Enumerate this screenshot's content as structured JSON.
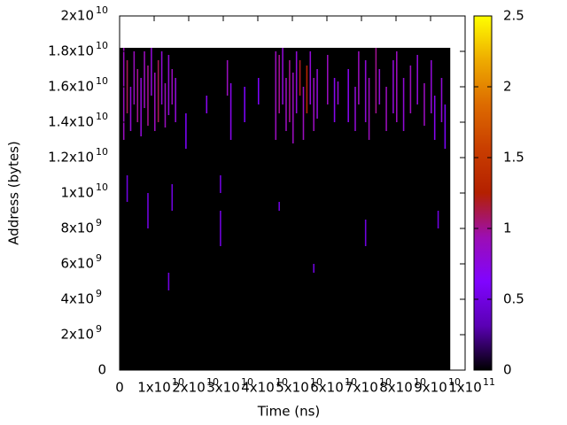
{
  "chart_data": {
    "type": "heatmap",
    "xlabel": "Time (ns)",
    "ylabel": "Address (bytes)",
    "xlim": [
      0,
      100000000000.0
    ],
    "ylim": [
      0,
      20000000000.0
    ],
    "clim": [
      0,
      2.5
    ],
    "xticks": [
      0,
      {
        "value": 10000000000.0,
        "label": "1x10",
        "exponent": "10"
      },
      {
        "value": 20000000000.0,
        "label": "2x10",
        "exponent": "10"
      },
      {
        "value": 30000000000.0,
        "label": "3x10",
        "exponent": "10"
      },
      {
        "value": 40000000000.0,
        "label": "4x10",
        "exponent": "10"
      },
      {
        "value": 50000000000.0,
        "label": "5x10",
        "exponent": "10"
      },
      {
        "value": 60000000000.0,
        "label": "6x10",
        "exponent": "10"
      },
      {
        "value": 70000000000.0,
        "label": "7x10",
        "exponent": "10"
      },
      {
        "value": 80000000000.0,
        "label": "8x10",
        "exponent": "10"
      },
      {
        "value": 90000000000.0,
        "label": "9x10",
        "exponent": "10"
      },
      {
        "value": 100000000000.0,
        "label": "1x10",
        "exponent": "11"
      }
    ],
    "yticks": [
      0,
      {
        "value": 2000000000.0,
        "label": "2x10",
        "exponent": "9"
      },
      {
        "value": 4000000000.0,
        "label": "4x10",
        "exponent": "9"
      },
      {
        "value": 6000000000.0,
        "label": "6x10",
        "exponent": "9"
      },
      {
        "value": 8000000000.0,
        "label": "8x10",
        "exponent": "9"
      },
      {
        "value": 10000000000.0,
        "label": "1x10",
        "exponent": "10"
      },
      {
        "value": 12000000000.0,
        "label": "1.2x10",
        "exponent": "10"
      },
      {
        "value": 14000000000.0,
        "label": "1.4x10",
        "exponent": "10"
      },
      {
        "value": 16000000000.0,
        "label": "1.6x10",
        "exponent": "10"
      },
      {
        "value": 18000000000.0,
        "label": "1.8x10",
        "exponent": "10"
      },
      {
        "value": 20000000000.0,
        "label": "2x10",
        "exponent": "10"
      }
    ],
    "cticks": [
      0,
      0.5,
      1,
      1.5,
      2,
      2.5
    ],
    "palette": [
      "#000000",
      "#5a00b4",
      "#8004ff",
      "#9c0eb4",
      "#b42000",
      "#c93e00",
      "#dd6b00",
      "#eeab00",
      "#ffff00"
    ],
    "background": {
      "x_extent": [
        0,
        95700000000.0
      ],
      "y_extent": [
        0,
        18200000000.0
      ],
      "value": 0
    },
    "cell_width": 400000000.0,
    "streaks": {
      "x": [
        1000000000.0,
        2000000000.0,
        3000000000.0,
        4000000000.0,
        5000000000.0,
        6000000000.0,
        7000000000.0,
        8000000000.0,
        9000000000.0,
        10000000000.0,
        11000000000.0,
        12000000000.0,
        13000000000.0,
        14000000000.0,
        15000000000.0,
        16000000000.0,
        19000000000.0,
        25000000000.0,
        31000000000.0,
        32000000000.0,
        36000000000.0,
        40000000000.0,
        45000000000.0,
        46000000000.0,
        47000000000.0,
        48000000000.0,
        49000000000.0,
        50000000000.0,
        51000000000.0,
        52000000000.0,
        53000000000.0,
        54000000000.0,
        55000000000.0,
        56000000000.0,
        57000000000.0,
        60000000000.0,
        62000000000.0,
        63000000000.0,
        66000000000.0,
        68000000000.0,
        69000000000.0,
        71000000000.0,
        72000000000.0,
        74000000000.0,
        75000000000.0,
        77000000000.0,
        79000000000.0,
        80000000000.0,
        82000000000.0,
        84000000000.0,
        86000000000.0,
        88000000000.0,
        90000000000.0,
        91000000000.0,
        93000000000.0,
        94000000000.0,
        2000000000.0,
        8000000000.0,
        15000000000.0,
        29000000000.0,
        29000000000.0,
        14000000000.0,
        56000000000.0,
        71000000000.0,
        92000000000.0,
        46000000000.0
      ],
      "y_start": [
        13000000000.0,
        14500000000.0,
        13500000000.0,
        15000000000.0,
        14000000000.0,
        13200000000.0,
        14800000000.0,
        13800000000.0,
        15500000000.0,
        13500000000.0,
        14000000000.0,
        15000000000.0,
        13700000000.0,
        14400000000.0,
        15000000000.0,
        14000000000.0,
        12500000000.0,
        14500000000.0,
        15500000000.0,
        13000000000.0,
        14000000000.0,
        15000000000.0,
        13000000000.0,
        14500000000.0,
        15000000000.0,
        13500000000.0,
        14000000000.0,
        12800000000.0,
        14500000000.0,
        15500000000.0,
        13000000000.0,
        14500000000.0,
        15000000000.0,
        13500000000.0,
        14200000000.0,
        15000000000.0,
        14000000000.0,
        15000000000.0,
        14000000000.0,
        13500000000.0,
        15000000000.0,
        14000000000.0,
        13000000000.0,
        14500000000.0,
        15000000000.0,
        13500000000.0,
        14500000000.0,
        14000000000.0,
        13500000000.0,
        14500000000.0,
        15000000000.0,
        13800000000.0,
        14500000000.0,
        13000000000.0,
        14000000000.0,
        12500000000.0,
        9500000000.0,
        8000000000.0,
        9000000000.0,
        7000000000.0,
        10000000000.0,
        4500000000.0,
        5500000000.0,
        7000000000.0,
        8000000000.0,
        9000000000.0
      ],
      "y_end": [
        18200000000.0,
        17500000000.0,
        16000000000.0,
        18000000000.0,
        17000000000.0,
        16500000000.0,
        18000000000.0,
        17200000000.0,
        18200000000.0,
        16800000000.0,
        17500000000.0,
        18000000000.0,
        16200000000.0,
        17800000000.0,
        17000000000.0,
        16500000000.0,
        14500000000.0,
        15500000000.0,
        17500000000.0,
        16200000000.0,
        16000000000.0,
        16500000000.0,
        18000000000.0,
        17800000000.0,
        18200000000.0,
        16500000000.0,
        17500000000.0,
        16800000000.0,
        18000000000.0,
        17500000000.0,
        16000000000.0,
        17200000000.0,
        18000000000.0,
        16500000000.0,
        17000000000.0,
        17800000000.0,
        16500000000.0,
        16300000000.0,
        17000000000.0,
        16000000000.0,
        18000000000.0,
        17500000000.0,
        16500000000.0,
        18200000000.0,
        17000000000.0,
        16000000000.0,
        17500000000.0,
        18000000000.0,
        16500000000.0,
        17200000000.0,
        17800000000.0,
        16200000000.0,
        17500000000.0,
        15500000000.0,
        16500000000.0,
        15000000000.0,
        11000000000.0,
        10000000000.0,
        10500000000.0,
        9000000000.0,
        11000000000.0,
        5500000000.0,
        6000000000.0,
        8500000000.0,
        9000000000.0,
        9500000000.0
      ],
      "values": [
        0.9,
        1.1,
        0.8,
        0.9,
        1.0,
        0.8,
        0.9,
        1.0,
        0.8,
        0.9,
        1.1,
        0.8,
        0.9,
        0.8,
        0.9,
        0.8,
        0.6,
        0.7,
        0.9,
        0.7,
        0.6,
        0.6,
        0.9,
        1.0,
        0.8,
        0.9,
        1.0,
        0.9,
        0.8,
        1.2,
        0.9,
        1.3,
        0.8,
        0.9,
        0.8,
        0.9,
        0.7,
        0.8,
        0.7,
        0.8,
        0.9,
        0.8,
        0.9,
        1.0,
        0.8,
        0.9,
        0.8,
        0.9,
        0.8,
        0.9,
        0.8,
        0.9,
        0.8,
        0.7,
        0.8,
        0.6,
        0.5,
        0.5,
        0.5,
        0.5,
        0.5,
        0.5,
        0.5,
        0.5,
        0.5,
        0.5
      ]
    }
  }
}
